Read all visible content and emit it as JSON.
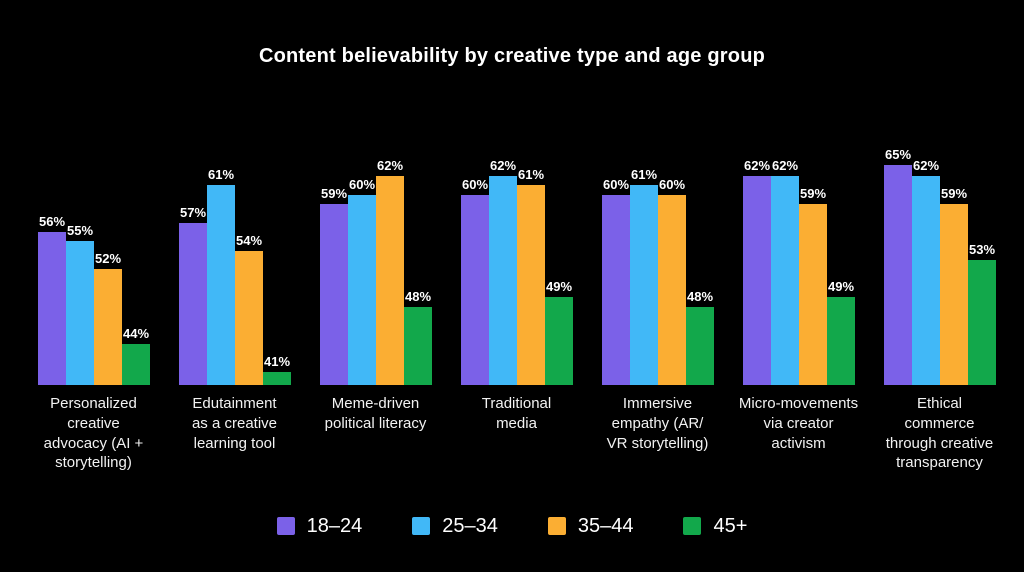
{
  "title": "Content believability by creative type and age group",
  "background_color": "#000000",
  "text_color": "#ffffff",
  "chart_data": {
    "type": "bar",
    "title": "Content believability by creative type and age group",
    "xlabel": "",
    "ylabel": "",
    "value_suffix": "%",
    "ylim": [
      39.6,
      65
    ],
    "grid": false,
    "legend_position": "bottom",
    "categories": [
      "Personalized\ncreative\nadvocacy (AI +\nstorytelling)",
      "Edutainment\nas a creative\nlearning tool",
      "Meme-driven\npolitical literacy",
      "Traditional\nmedia",
      "Immersive\nempathy (AR/\nVR storytelling)",
      "Micro-movements\nvia creator\nactivism",
      "Ethical\ncommerce\nthrough creative\ntransparency"
    ],
    "series": [
      {
        "name": "18–24",
        "color": "#7B61E8",
        "values": [
          56,
          57,
          59,
          60,
          60,
          62,
          65
        ]
      },
      {
        "name": "25–34",
        "color": "#41B8F7",
        "values": [
          55,
          61,
          60,
          62,
          61,
          62,
          62
        ]
      },
      {
        "name": "35–44",
        "color": "#FBAE33",
        "values": [
          52,
          54,
          62,
          61,
          60,
          59,
          59
        ]
      },
      {
        "name": "45+",
        "color": "#12A84B",
        "values": [
          44,
          41,
          48,
          49,
          48,
          49,
          53
        ]
      }
    ]
  }
}
